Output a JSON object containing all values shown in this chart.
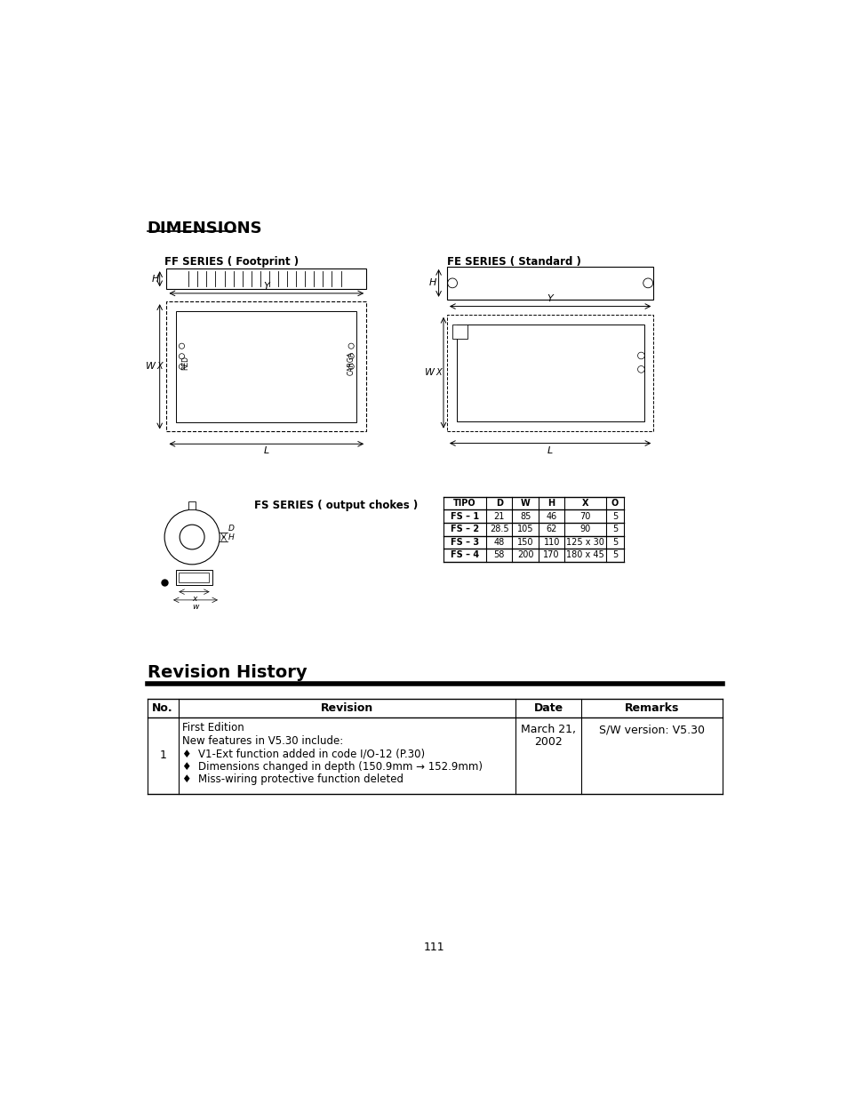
{
  "title": "DIMENSIONS",
  "ff_series_label": "FF SERIES ( Footprint )",
  "fe_series_label": "FE SERIES ( Standard )",
  "fs_series_label": "FS SERIES ( output chokes )",
  "revision_history_title": "Revision History",
  "table_headers": [
    "No.",
    "Revision",
    "Date",
    "Remarks"
  ],
  "table_row_no": "1",
  "table_revision_lines": [
    "First Edition",
    "New features in V5.30 include:",
    "♦  V1-Ext function added in code I/O-12 (P.30)",
    "♦  Dimensions changed in depth (150.9mm → 152.9mm)",
    "♦  Miss-wiring protective function deleted"
  ],
  "table_date_line1": "March 21,",
  "table_date_line2": "2002",
  "table_remarks": "S/W version: V5.30",
  "fs_table_headers": [
    "TIPO",
    "D",
    "W",
    "H",
    "X",
    "O"
  ],
  "fs_table_rows": [
    [
      "FS – 1",
      "21",
      "85",
      "46",
      "70",
      "5"
    ],
    [
      "FS – 2",
      "28.5",
      "105",
      "62",
      "90",
      "5"
    ],
    [
      "FS – 3",
      "48",
      "150",
      "110",
      "125 x 30",
      "5"
    ],
    [
      "FS – 4",
      "58",
      "200",
      "170",
      "180 x 45",
      "5"
    ]
  ],
  "page_number": "111",
  "bg_color": "#ffffff",
  "text_color": "#000000"
}
